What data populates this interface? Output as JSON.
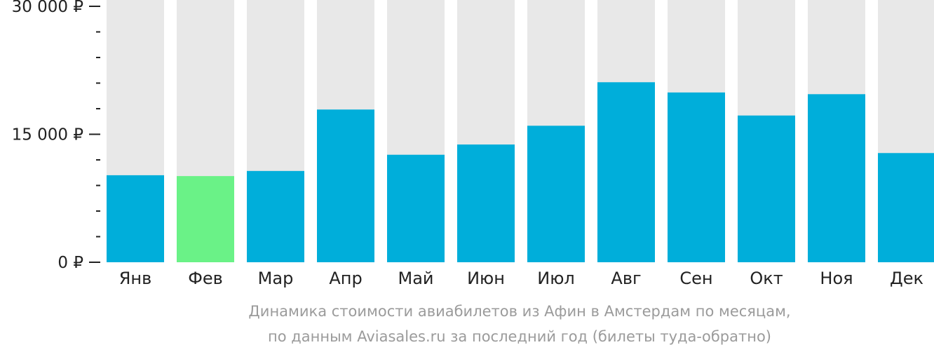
{
  "chart_data": {
    "type": "bar",
    "categories": [
      "Янв",
      "Фев",
      "Мар",
      "Апр",
      "Май",
      "Июн",
      "Июл",
      "Авг",
      "Сен",
      "Окт",
      "Ноя",
      "Дек"
    ],
    "values": [
      10200,
      10100,
      10700,
      17900,
      12600,
      13800,
      16000,
      21100,
      19900,
      17200,
      19700,
      12800
    ],
    "highlight_index": 1,
    "ylim": [
      0,
      30000
    ],
    "yticks": [
      {
        "value": 0,
        "label": "0 ₽"
      },
      {
        "value": 15000,
        "label": "15 000 ₽"
      },
      {
        "value": 30000,
        "label": "30 000 ₽"
      }
    ],
    "minor_tick_step": 3000,
    "colors": {
      "bar": "#00AEDA",
      "highlight": "#6AF287",
      "background_bar": "#E8E8E8",
      "axis": "#222222"
    }
  },
  "caption": {
    "line1": "Динамика стоимости авиабилетов из Афин в Амстердам по месяцам,",
    "line2": "по данным Aviasales.ru за последний год (билеты туда-обратно)"
  }
}
